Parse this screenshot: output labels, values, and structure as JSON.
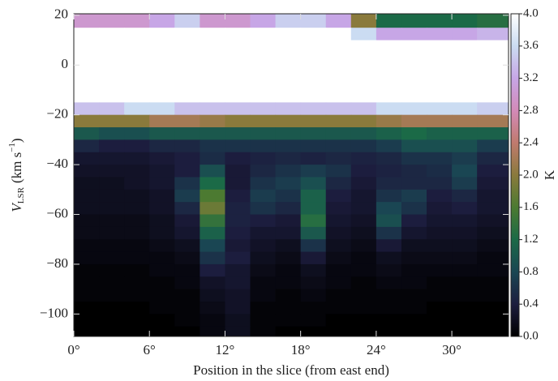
{
  "chart_data": {
    "type": "heatmap",
    "xlabel": "Position in the slice (from east end)",
    "ylabel": [
      "V",
      "LSR",
      "(km s",
      "−1",
      ")"
    ],
    "colorbar_label": "K",
    "xlim": [
      0,
      34.5
    ],
    "ylim": [
      -109,
      20.6
    ],
    "clim": [
      0,
      4
    ],
    "xticks": [
      {
        "value": 0,
        "label": "0°"
      },
      {
        "value": 6,
        "label": "6°"
      },
      {
        "value": 12,
        "label": "12°"
      },
      {
        "value": 18,
        "label": "18°"
      },
      {
        "value": 24,
        "label": "24°"
      },
      {
        "value": 30,
        "label": "30°"
      }
    ],
    "yticks": [
      {
        "value": -100,
        "label": "−100"
      },
      {
        "value": -80,
        "label": "−80"
      },
      {
        "value": -60,
        "label": "−60"
      },
      {
        "value": -40,
        "label": "−40"
      },
      {
        "value": -20,
        "label": "−20"
      },
      0,
      20
    ],
    "cticks": [
      {
        "value": 0,
        "label": "0.0"
      },
      {
        "value": 0.4,
        "label": "0.4"
      },
      {
        "value": 0.8,
        "label": "0.8"
      },
      {
        "value": 1.2,
        "label": "1.2"
      },
      {
        "value": 1.6,
        "label": "1.6"
      },
      {
        "value": 2.0,
        "label": "2.0"
      },
      {
        "value": 2.4,
        "label": "2.4"
      },
      {
        "value": 2.8,
        "label": "2.8"
      },
      {
        "value": 3.2,
        "label": "3.2"
      },
      {
        "value": 3.6,
        "label": "3.6"
      },
      {
        "value": 4.0,
        "label": "4.0"
      }
    ],
    "colormap": [
      "#000000",
      "#1c1d3e",
      "#1a4653",
      "#1b6a47",
      "#4c7a31",
      "#8a7a3c",
      "#c07a6e",
      "#d38ab8",
      "#c7a6e6",
      "#cbdcf2",
      "#ffffff"
    ],
    "x_edges": [
      0,
      2,
      4,
      6,
      8,
      10,
      12,
      14,
      16,
      18,
      20,
      22,
      24,
      26,
      28,
      30,
      32,
      34.5
    ],
    "y_edges": [
      20.6,
      15,
      10,
      5,
      0,
      -5,
      -10,
      -15,
      -20,
      -25,
      -30,
      -35,
      -40,
      -45,
      -50,
      -55,
      -60,
      -65,
      -70,
      -75,
      -80,
      -85,
      -90,
      -95,
      -100,
      -105,
      -109
    ],
    "z": [
      [
        3,
        3,
        3,
        3.2,
        3.5,
        3,
        3,
        3.2,
        3.5,
        3.5,
        3.2,
        2,
        1.2,
        1.2,
        1.2,
        1.2,
        1.3
      ],
      [
        4,
        4,
        4,
        4,
        4,
        4,
        4,
        4,
        4,
        4,
        4,
        3.6,
        3.2,
        3.2,
        3.2,
        3.2,
        3.3
      ],
      [
        4,
        4,
        4,
        4,
        4,
        4,
        4,
        4,
        4,
        4,
        4,
        4,
        4,
        4,
        4,
        4,
        4
      ],
      [
        4,
        4,
        4,
        4,
        4,
        4,
        4,
        4,
        4,
        4,
        4,
        4,
        4,
        4,
        4,
        4,
        4
      ],
      [
        4,
        4,
        4,
        4,
        4,
        4,
        4,
        4,
        4,
        4,
        4,
        4,
        4,
        4,
        4,
        4,
        4
      ],
      [
        4,
        4,
        4,
        4,
        4,
        4,
        4,
        4,
        4,
        4,
        4,
        4,
        4,
        4,
        4,
        4,
        4
      ],
      [
        4,
        4,
        4,
        4,
        4,
        4,
        4,
        4,
        4,
        4,
        4,
        4,
        4,
        4,
        4,
        4,
        4
      ],
      [
        3.4,
        3.4,
        3.6,
        3.6,
        3.4,
        3.4,
        3.4,
        3.4,
        3.4,
        3.4,
        3.4,
        3.4,
        3.6,
        3.6,
        3.6,
        3.6,
        3.5
      ],
      [
        2,
        2,
        2,
        2.2,
        2.2,
        2.1,
        2,
        2,
        2,
        2,
        2,
        2,
        2.1,
        2.2,
        2.2,
        2.2,
        2.2
      ],
      [
        1,
        0.9,
        0.9,
        1,
        1,
        1,
        1,
        1,
        1,
        1,
        1,
        1,
        1.1,
        1.2,
        1.1,
        1.1,
        1.1
      ],
      [
        0.5,
        0.4,
        0.4,
        0.5,
        0.5,
        0.6,
        0.6,
        0.6,
        0.6,
        0.6,
        0.6,
        0.6,
        0.7,
        0.9,
        0.9,
        0.9,
        0.7
      ],
      [
        0.3,
        0.3,
        0.3,
        0.35,
        0.4,
        0.55,
        0.4,
        0.45,
        0.5,
        0.45,
        0.5,
        0.45,
        0.5,
        0.6,
        0.6,
        0.7,
        0.5
      ],
      [
        0.25,
        0.25,
        0.25,
        0.3,
        0.4,
        0.9,
        0.35,
        0.5,
        0.6,
        0.7,
        0.6,
        0.4,
        0.45,
        0.5,
        0.55,
        0.8,
        0.4
      ],
      [
        0.2,
        0.2,
        0.25,
        0.3,
        0.6,
        1.2,
        0.35,
        0.6,
        0.7,
        0.9,
        0.5,
        0.35,
        0.5,
        0.5,
        0.5,
        0.7,
        0.35
      ],
      [
        0.2,
        0.2,
        0.2,
        0.25,
        0.7,
        1.6,
        0.4,
        0.7,
        0.6,
        1.1,
        0.4,
        0.3,
        0.6,
        0.7,
        0.4,
        0.5,
        0.3
      ],
      [
        0.2,
        0.2,
        0.2,
        0.25,
        0.5,
        1.8,
        0.45,
        0.6,
        0.5,
        1.1,
        0.35,
        0.3,
        0.8,
        0.6,
        0.35,
        0.4,
        0.3
      ],
      [
        0.15,
        0.15,
        0.15,
        0.2,
        0.35,
        1.4,
        0.45,
        0.4,
        0.35,
        1.3,
        0.3,
        0.25,
        0.9,
        0.4,
        0.3,
        0.3,
        0.25
      ],
      [
        0.15,
        0.15,
        0.15,
        0.2,
        0.3,
        1.1,
        0.4,
        0.3,
        0.3,
        1.0,
        0.25,
        0.2,
        0.6,
        0.3,
        0.25,
        0.25,
        0.2
      ],
      [
        0.1,
        0.1,
        0.1,
        0.15,
        0.2,
        0.8,
        0.35,
        0.25,
        0.2,
        0.6,
        0.2,
        0.15,
        0.35,
        0.2,
        0.2,
        0.2,
        0.15
      ],
      [
        0.1,
        0.1,
        0.1,
        0.1,
        0.15,
        0.6,
        0.4,
        0.2,
        0.15,
        0.35,
        0.15,
        0.1,
        0.2,
        0.15,
        0.15,
        0.15,
        0.1
      ],
      [
        0.05,
        0.05,
        0.05,
        0.1,
        0.1,
        0.4,
        0.3,
        0.15,
        0.1,
        0.2,
        0.1,
        0.1,
        0.15,
        0.1,
        0.1,
        0.1,
        0.1
      ],
      [
        0.05,
        0.05,
        0.05,
        0.05,
        0.1,
        0.25,
        0.3,
        0.1,
        0.1,
        0.15,
        0.1,
        0.05,
        0.1,
        0.1,
        0.05,
        0.05,
        0.05
      ],
      [
        0.05,
        0.05,
        0.05,
        0.05,
        0.05,
        0.2,
        0.25,
        0.1,
        0.05,
        0.1,
        0.05,
        0.05,
        0.05,
        0.05,
        0.05,
        0.05,
        0.05
      ],
      [
        0,
        0,
        0,
        0.05,
        0.05,
        0.15,
        0.25,
        0.05,
        0.05,
        0.05,
        0.05,
        0.05,
        0.05,
        0.05,
        0,
        0,
        0
      ],
      [
        0,
        0,
        0,
        0,
        0.05,
        0.1,
        0.2,
        0.05,
        0.05,
        0.05,
        0,
        0,
        0,
        0,
        0,
        0,
        0
      ],
      [
        0,
        0,
        0,
        0,
        0,
        0.1,
        0.2,
        0.05,
        0,
        0,
        0,
        0,
        0,
        0,
        0,
        0,
        0
      ]
    ]
  }
}
